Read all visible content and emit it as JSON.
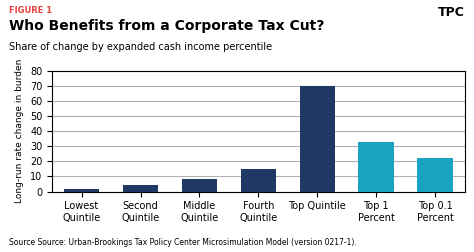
{
  "chart_data": {
    "type": "bar",
    "title": "Who Benefits from a Corporate Tax Cut?",
    "subtitle": "Share of change by expanded cash income percentile",
    "ylabel": "Long-run rate change in burden",
    "annotations": [
      "FIGURE 1",
      "Source Source: Urban-Brookings Tax Policy Center Microsimulation Model (version 0217-1).",
      "TPC"
    ],
    "categories": [
      "Lowest\nQuintile",
      "Second\nQuintile",
      "Middle\nQuintile",
      "Fourth\nQuintile",
      "Top Quintile",
      "Top 1\nPercent",
      "Top 0.1\nPercent"
    ],
    "values": [
      1.5,
      4.5,
      8.5,
      15.0,
      70.0,
      33.0,
      22.0
    ],
    "colors": [
      "#1f3864",
      "#1f3864",
      "#1f3864",
      "#1f3864",
      "#1f3864",
      "#1aa3c0",
      "#1aa3c0"
    ],
    "ylim": [
      0,
      80
    ],
    "yticks": [
      0,
      10,
      20,
      30,
      40,
      50,
      60,
      70,
      80
    ],
    "grid": true
  }
}
